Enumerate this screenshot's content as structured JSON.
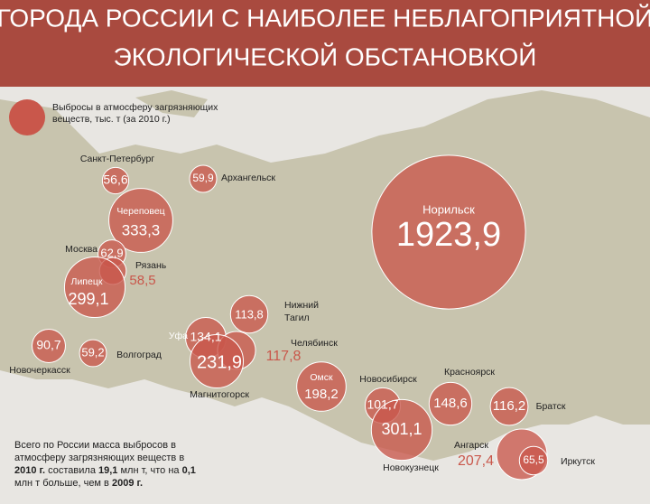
{
  "title_lines": [
    "ГОРОДА РОССИИ С НАИБОЛЕЕ НЕБЛАГОПРИЯТНОЙ",
    "ЭКОЛОГИЧЕСКОЙ ОБСТАНОВКОЙ"
  ],
  "legend": {
    "text": "Выбросы в атмосферу загрязняющих веществ, тыс. т (за 2010 г.)",
    "color": "#c9574b"
  },
  "cities": [
    {
      "name": "Санкт-Петербург",
      "value": 56.6,
      "value_label": "56,6"
    },
    {
      "name": "Архангельск",
      "value": 59.9,
      "value_label": "59,9"
    },
    {
      "name": "Череповец",
      "value": 333.3,
      "value_label": "333,3"
    },
    {
      "name": "Москва",
      "value": 62.9,
      "value_label": "62,9"
    },
    {
      "name": "Рязань",
      "value": 58.5,
      "value_label": "58,5",
      "label_outside": true
    },
    {
      "name": "Липецк",
      "value": 299.1,
      "value_label": "299,1"
    },
    {
      "name": "Норильск",
      "value": 1923.9,
      "value_label": "1923,9"
    },
    {
      "name": "Нижний Тагил",
      "value": 113.8,
      "value_label": "113,8"
    },
    {
      "name": "Уфа",
      "value": 134.1,
      "value_label": "134,1"
    },
    {
      "name": "Челябинск",
      "value": 117.8,
      "value_label": "117,8",
      "label_outside": true
    },
    {
      "name": "Магнитогорск",
      "value": 231.9,
      "value_label": "231,9"
    },
    {
      "name": "Новочеркасск",
      "value": 90.7,
      "value_label": "90,7"
    },
    {
      "name": "Волгоград",
      "value": 59.2,
      "value_label": "59,2"
    },
    {
      "name": "Омск",
      "value": 198.2,
      "value_label": "198,2"
    },
    {
      "name": "Новосибирск",
      "value": 101.7,
      "value_label": "101,7"
    },
    {
      "name": "Новокузнецк",
      "value": 301.1,
      "value_label": "301,1"
    },
    {
      "name": "Красноярск",
      "value": 148.6,
      "value_label": "148,6"
    },
    {
      "name": "Братск",
      "value": 116.2,
      "value_label": "116,2"
    },
    {
      "name": "Ангарск",
      "value": 207.4,
      "value_label": "207,4",
      "label_outside": true
    },
    {
      "name": "Иркутск",
      "value": 65.5,
      "value_label": "65,5"
    }
  ],
  "note": [
    {
      "text": "Всего по России масса выбросов в атмосферу загрязняющих веществ в ",
      "bold": false
    },
    {
      "text": "2010 г.",
      "bold": true
    },
    {
      "text": " составила ",
      "bold": false
    },
    {
      "text": "19,1",
      "bold": true
    },
    {
      "text": " млн т, что на ",
      "bold": false
    },
    {
      "text": "0,1",
      "bold": true
    },
    {
      "text": " млн т больше, чем в ",
      "bold": false
    },
    {
      "text": "2009 г.",
      "bold": true
    }
  ]
}
